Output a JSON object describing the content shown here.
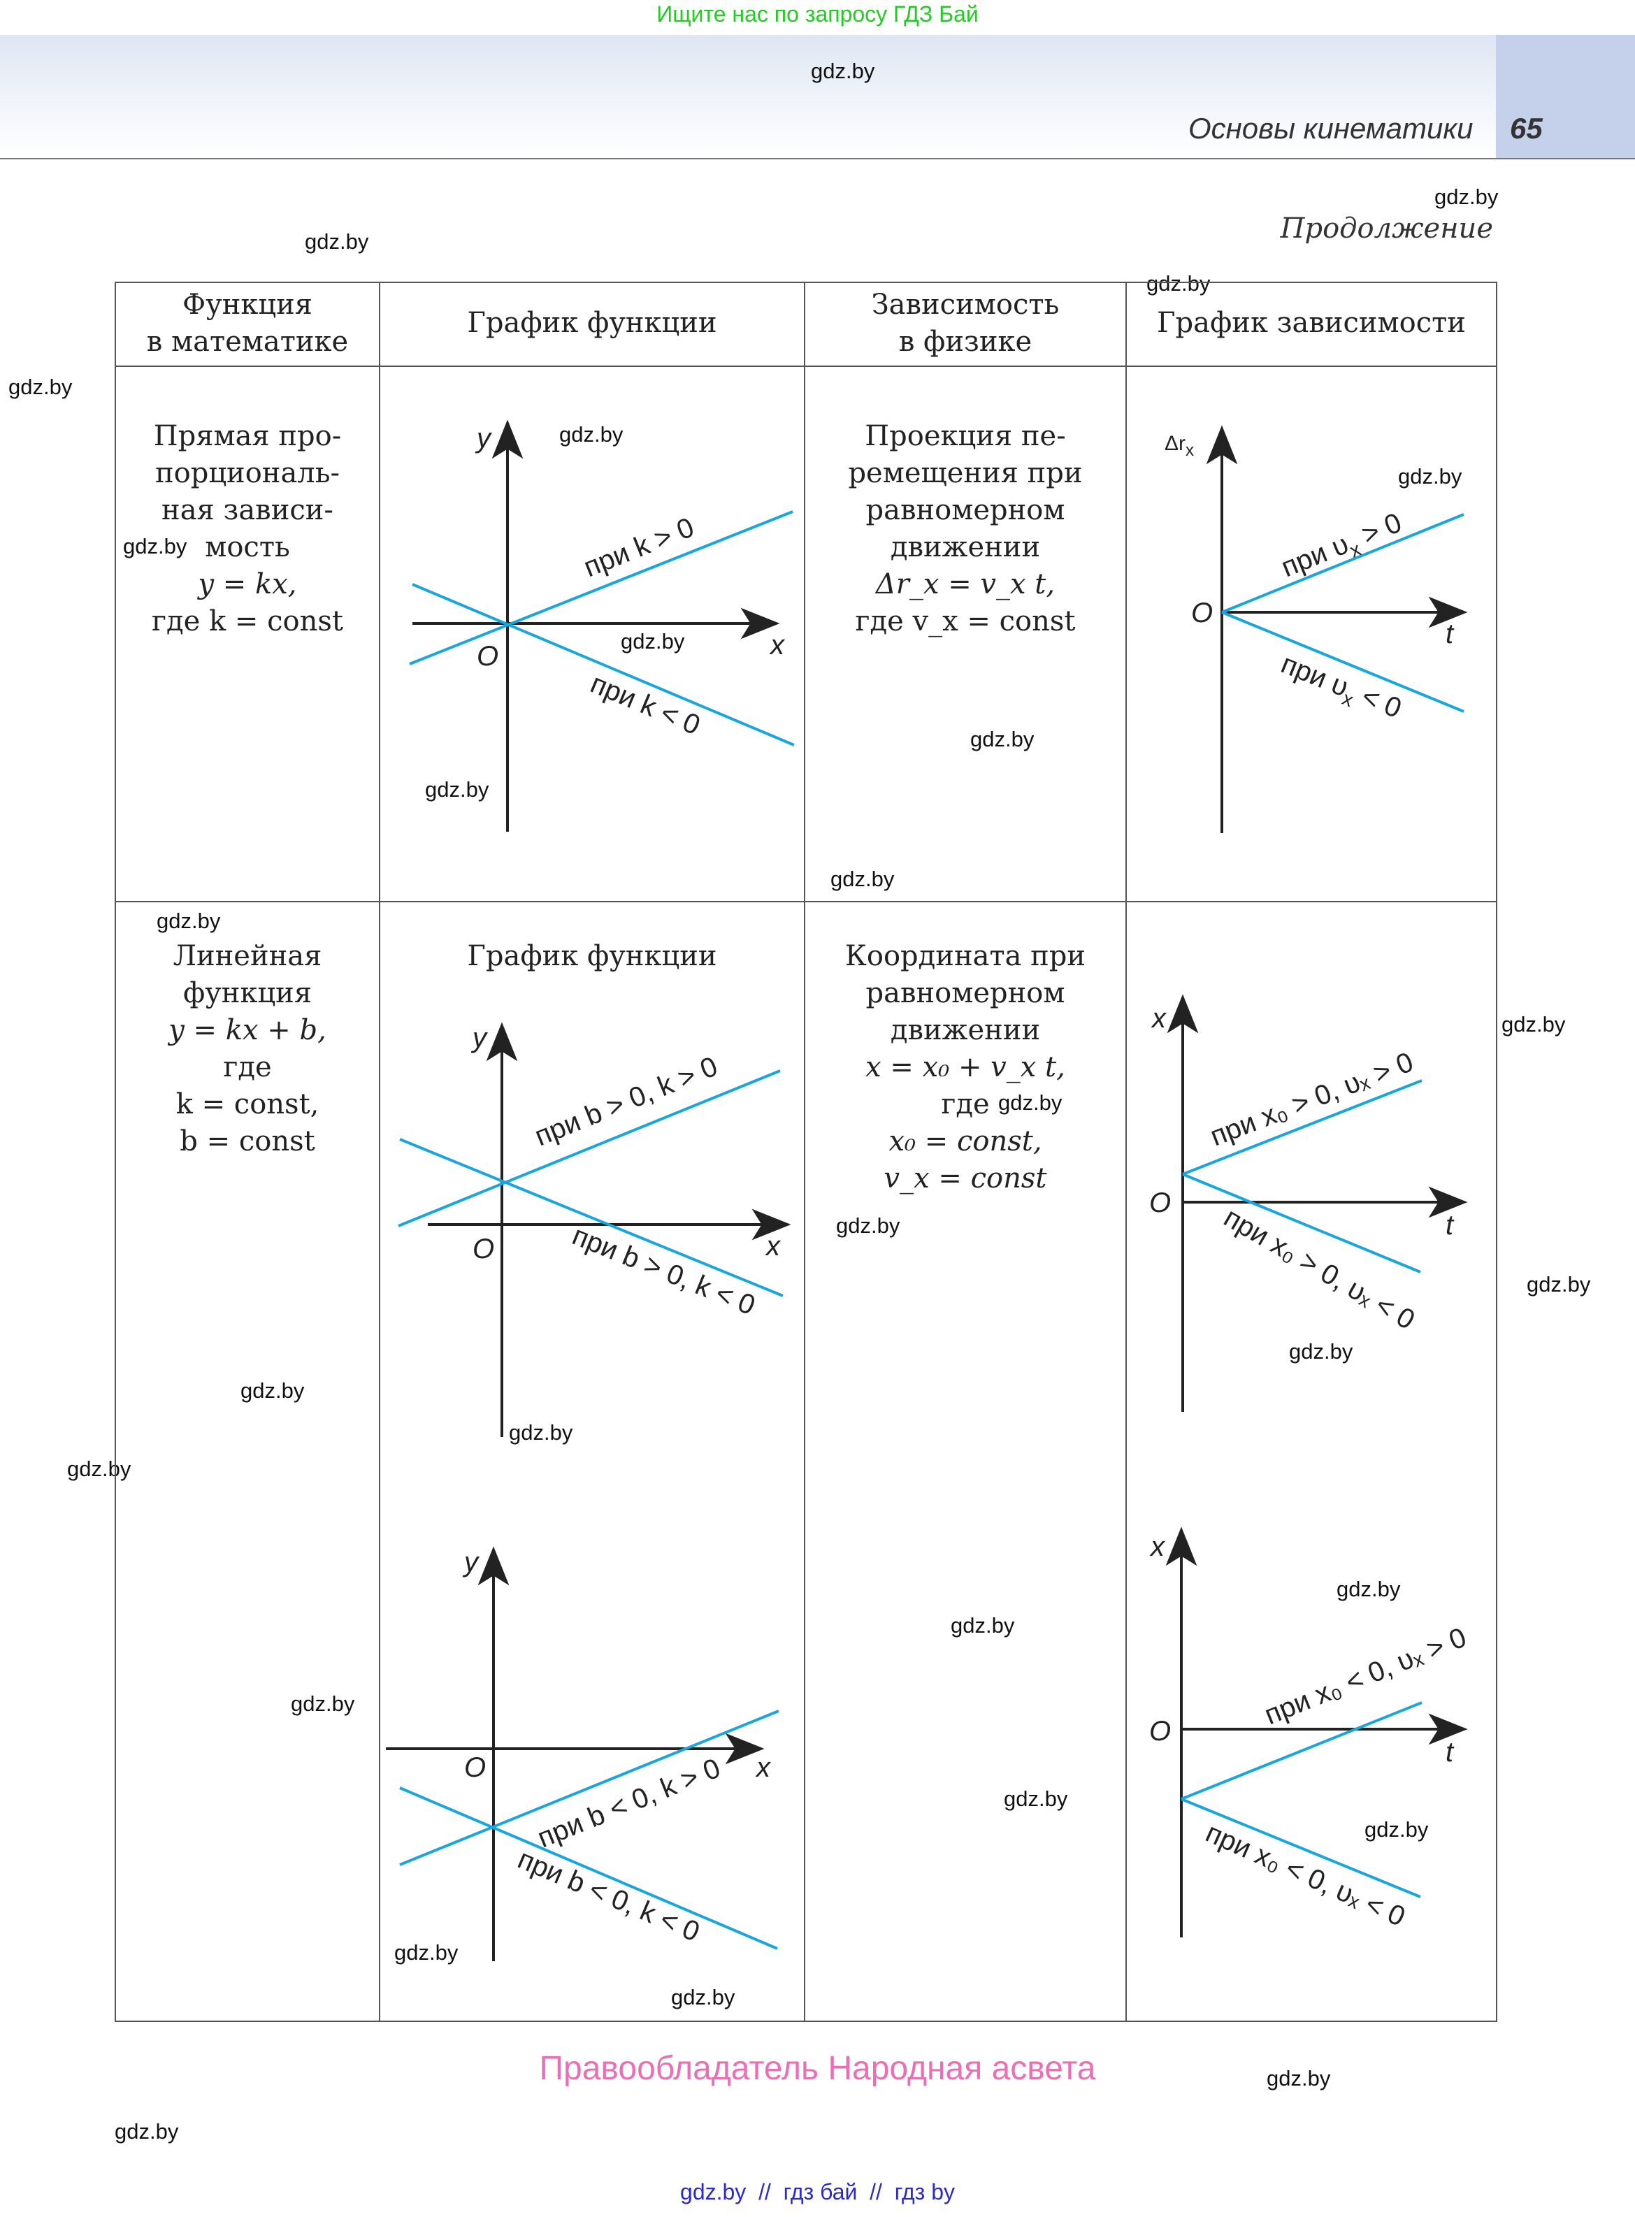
{
  "top_banner": "Ищите нас по запросу ГДЗ Бай",
  "header": {
    "section_title": "Основы кинематики",
    "page_number": "65"
  },
  "continuation_label": "Продолжение",
  "watermark": "gdz.by",
  "table": {
    "headers": [
      "Функция\nв математике",
      "График функции",
      "Зависимость\nв физике",
      "График зависимости"
    ],
    "row1": {
      "math_function_lines": [
        "Прямая про-",
        "порциональ-",
        "ная зависи-",
        "мость",
        "y = kx,",
        "где k = const"
      ],
      "physics_lines": [
        "Проекция пе-",
        "ремещения при",
        "равномерном",
        "движении",
        "Δr_x = v_x t,",
        "где v_x = const"
      ]
    },
    "row2": {
      "math_function_lines": [
        "Линейная",
        "функция",
        "y = kx + b,",
        "где",
        "k = const,",
        "b = const"
      ],
      "graph_title": "График функции",
      "physics_lines": [
        "Координата при",
        "равномерном",
        "движении",
        "x = x₀ + v_x t,",
        "где",
        "x₀ = const,",
        "v_x = const"
      ]
    }
  },
  "graphs": {
    "g1": {
      "y_axis": "y",
      "x_axis": "x",
      "origin": "O",
      "line1": "при k > 0",
      "line2": "при k < 0"
    },
    "g2": {
      "y_axis": "Δr",
      "y_sub": "x",
      "x_axis": "t",
      "origin": "O",
      "line1": "при υ",
      "line1_sub": "x",
      "line1_tail": " > 0",
      "line2": "при υ",
      "line2_sub": "x",
      "line2_tail": " < 0"
    },
    "g3": {
      "y_axis": "y",
      "x_axis": "x",
      "origin": "O",
      "line1": "при b > 0, k > 0",
      "line2": "при b > 0, k < 0"
    },
    "g4": {
      "y_axis": "x",
      "x_axis": "t",
      "origin": "O",
      "line1": "при x₀ > 0, υₓ > 0",
      "line2": "при x₀ > 0, υₓ < 0"
    },
    "g5": {
      "y_axis": "y",
      "x_axis": "x",
      "origin": "O",
      "line1": "при b < 0, k > 0",
      "line2": "при b < 0, k < 0"
    },
    "g6": {
      "y_axis": "x",
      "x_axis": "t",
      "origin": "O",
      "line1": "при x₀ < 0, υₓ > 0",
      "line2": "при x₀ < 0, υₓ < 0"
    }
  },
  "footer": {
    "owner": "Правообладатель Народная асвета",
    "links": "gdz.by  //  гдз бай  //  гдз by"
  },
  "colors": {
    "line": "#19a6dc",
    "axis": "#222222",
    "owner": "#ea6fb5",
    "banner": "#22cc22"
  }
}
